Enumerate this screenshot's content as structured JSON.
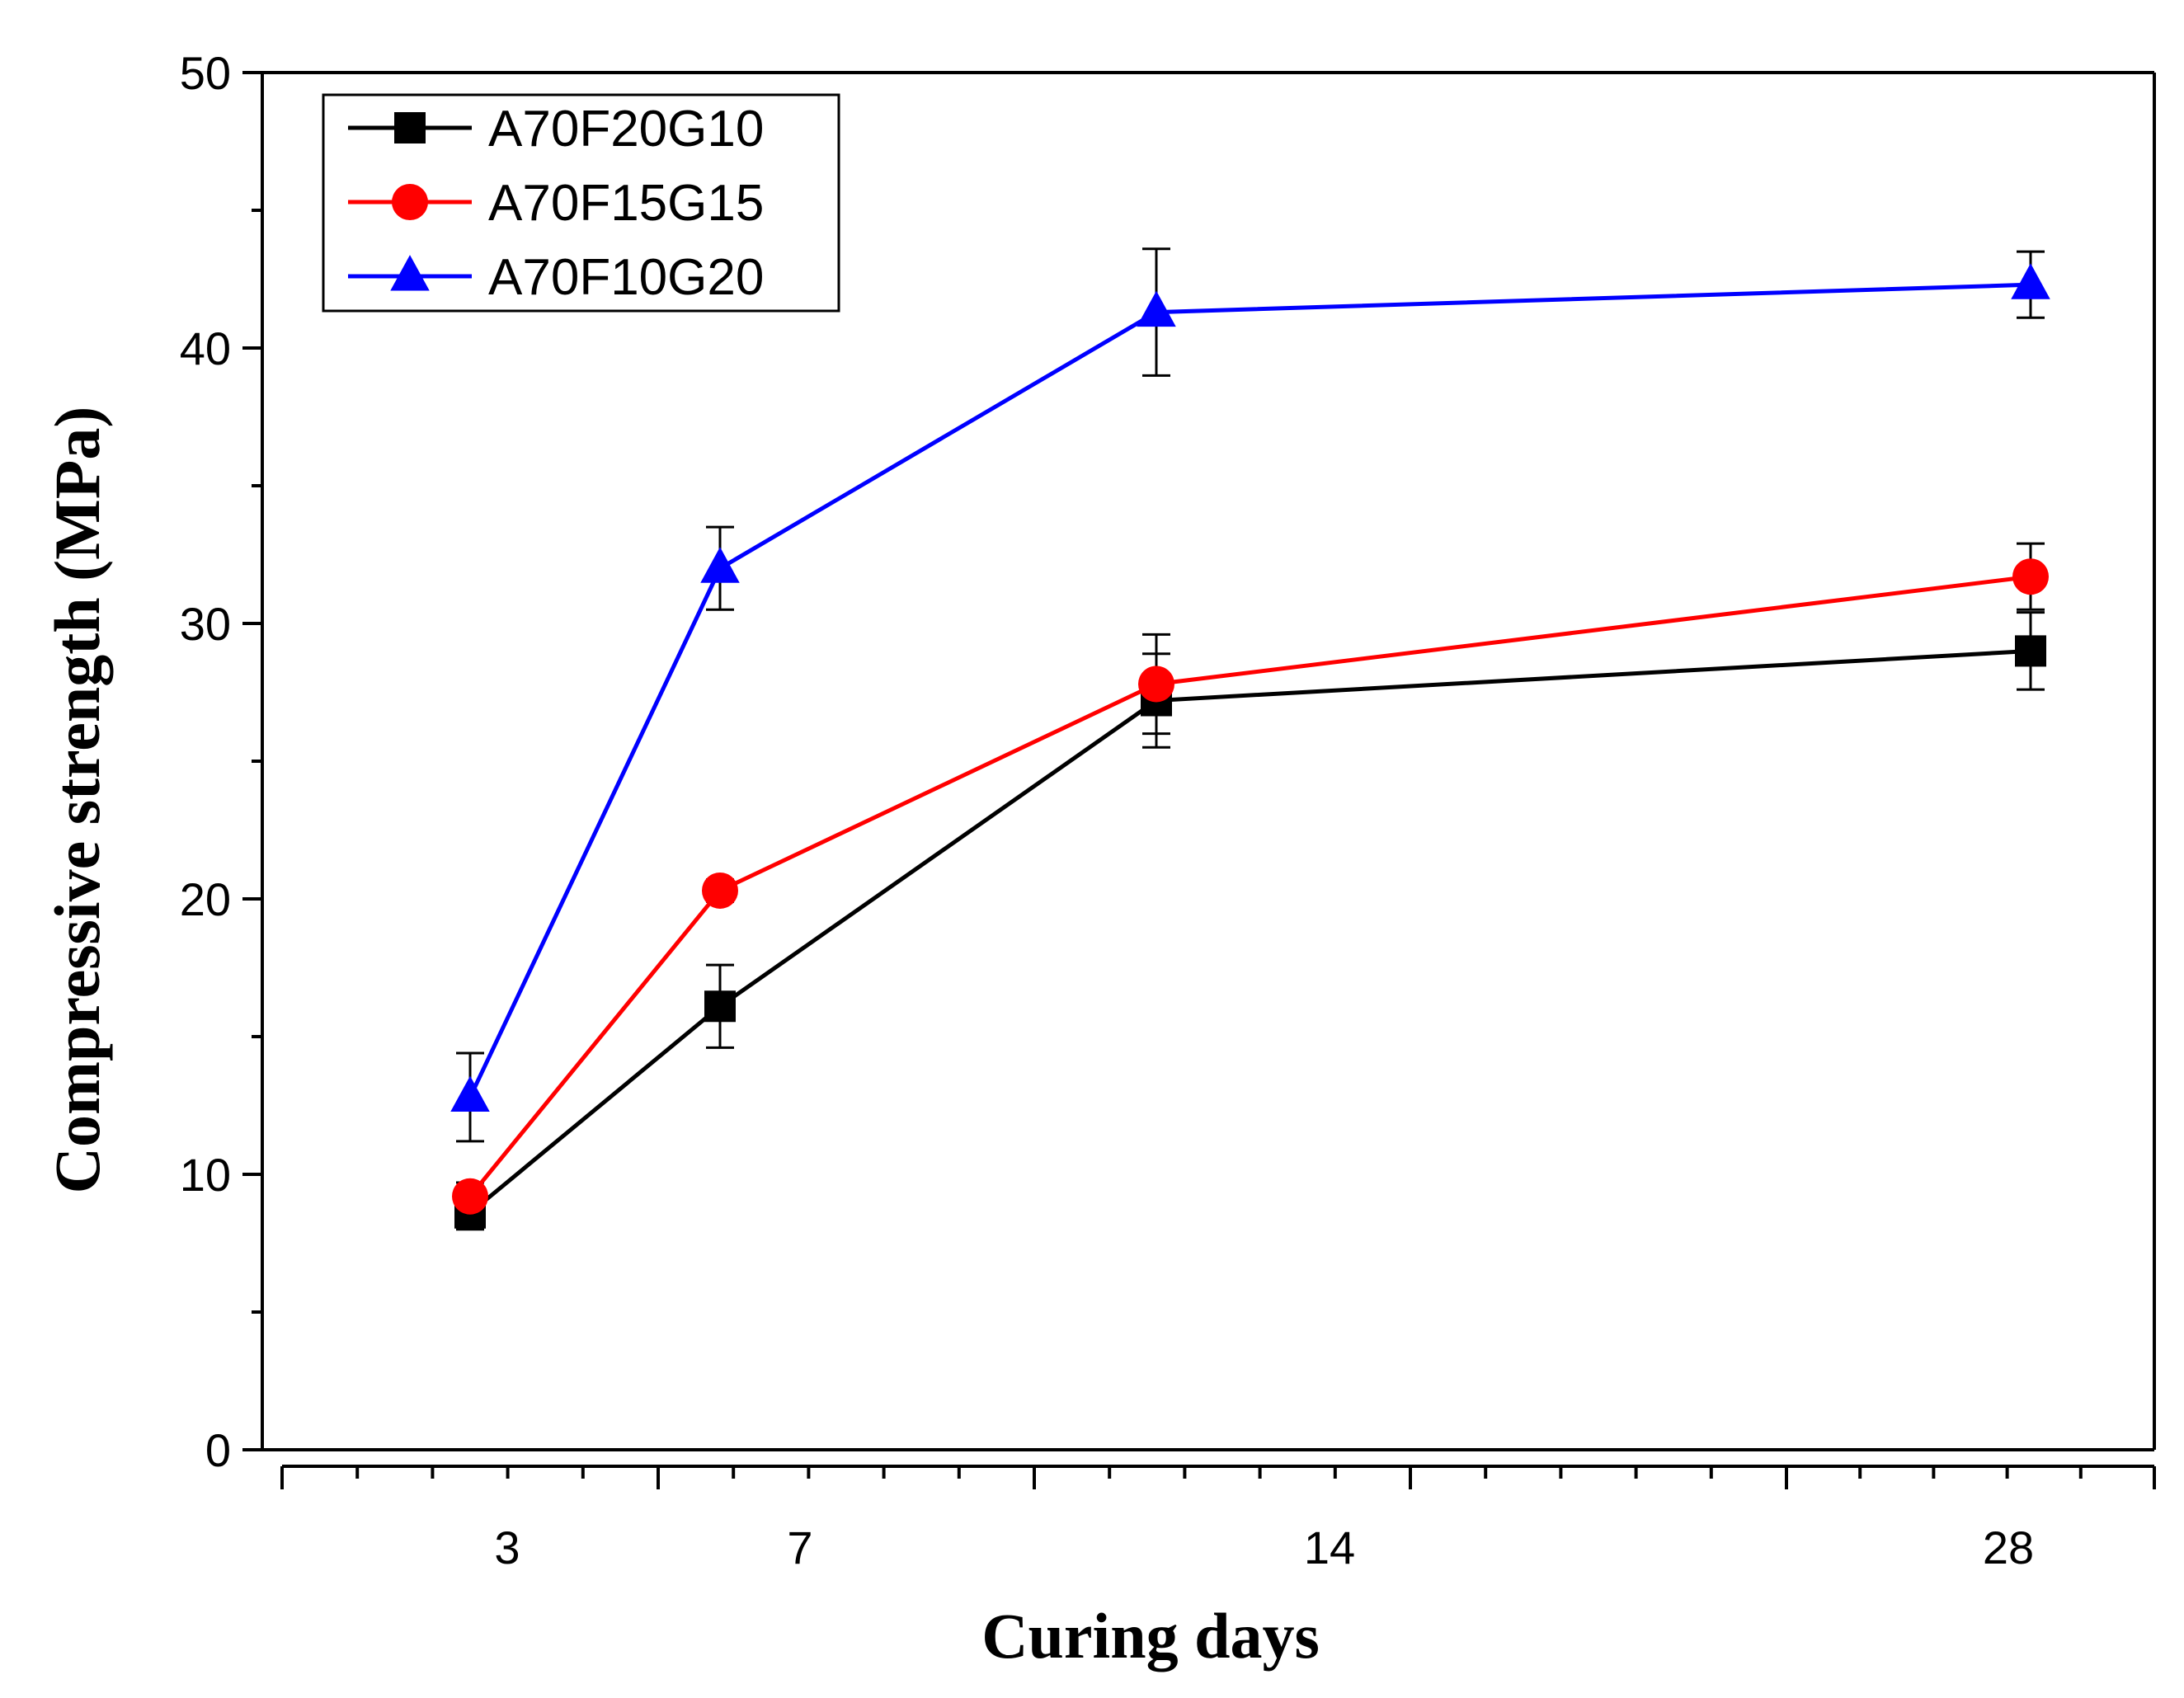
{
  "chart_data": {
    "type": "line",
    "title": "",
    "xlabel": "Curing days",
    "ylabel": "Compressive strength (MPa)",
    "x_tick_labels": [
      "3",
      "7",
      "14",
      "28"
    ],
    "y_ticks": [
      0,
      10,
      20,
      30,
      40,
      50
    ],
    "ylim": [
      0,
      50
    ],
    "legend_position": "top-left",
    "series": [
      {
        "name": "A70F20G10",
        "color": "#000000",
        "marker": "square",
        "x": [
          "3",
          "7",
          "14",
          "28"
        ],
        "values": [
          8.6,
          16.1,
          27.2,
          29.0
        ],
        "error": [
          0.6,
          1.5,
          1.7,
          1.4
        ]
      },
      {
        "name": "A70F15G15",
        "color": "#ff0000",
        "marker": "circle",
        "x": [
          "3",
          "7",
          "14",
          "28"
        ],
        "values": [
          9.2,
          20.3,
          27.8,
          31.7
        ],
        "error": [
          0.5,
          0.4,
          1.8,
          1.2
        ]
      },
      {
        "name": "A70F10G20",
        "color": "#0000ff",
        "marker": "triangle",
        "x": [
          "3",
          "7",
          "14",
          "28"
        ],
        "values": [
          12.8,
          32.0,
          41.3,
          42.3
        ],
        "error": [
          1.6,
          1.5,
          2.3,
          1.2
        ]
      }
    ]
  }
}
